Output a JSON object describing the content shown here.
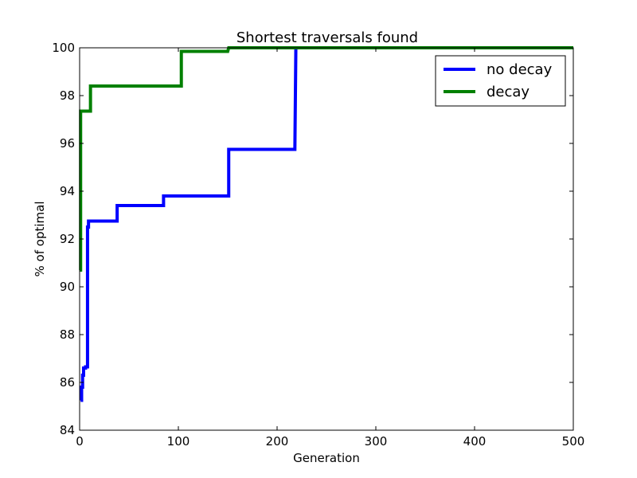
{
  "chart_data": {
    "type": "line",
    "title": "Shortest traversals found",
    "xlabel": "Generation",
    "ylabel": "% of optimal",
    "xlim": [
      0,
      500
    ],
    "ylim": [
      84,
      100
    ],
    "xticks": [
      0,
      100,
      200,
      300,
      400,
      500
    ],
    "yticks": [
      84,
      86,
      88,
      90,
      92,
      94,
      96,
      98,
      100
    ],
    "grid": false,
    "legend_position": "top-right",
    "series": [
      {
        "name": "no decay",
        "color": "#0000ff",
        "x": [
          1,
          2,
          2,
          3,
          3,
          4,
          4,
          6,
          6,
          8,
          8,
          9,
          9,
          38,
          38,
          85,
          85,
          151,
          151,
          218,
          219,
          500
        ],
        "y": [
          85.25,
          85.25,
          85.8,
          85.8,
          86.3,
          86.3,
          86.6,
          86.6,
          86.65,
          86.65,
          92.5,
          92.5,
          92.75,
          92.75,
          93.4,
          93.4,
          93.8,
          93.8,
          95.75,
          95.75,
          100,
          100
        ]
      },
      {
        "name": "decay",
        "color": "#008000",
        "x": [
          0,
          1,
          1,
          11,
          11,
          103,
          103,
          150,
          151,
          500
        ],
        "y": [
          90.7,
          90.7,
          97.35,
          97.35,
          98.4,
          98.4,
          99.85,
          99.85,
          100,
          100
        ]
      }
    ]
  }
}
